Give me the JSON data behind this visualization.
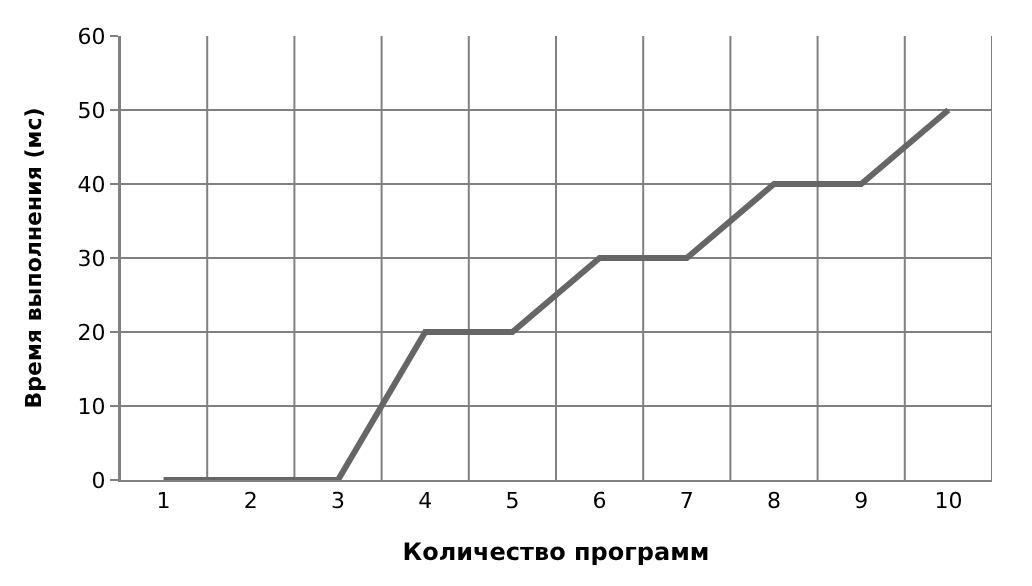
{
  "chart_data": {
    "type": "line",
    "xlabel": "Количество программ",
    "ylabel": "Время выполнения (мс)",
    "categories": [
      "1",
      "2",
      "3",
      "4",
      "5",
      "6",
      "7",
      "8",
      "9",
      "10"
    ],
    "series": [
      {
        "color": "#666666",
        "values": [
          0,
          0,
          0,
          20,
          20,
          30,
          30,
          40,
          40,
          50
        ]
      }
    ],
    "ylim": [
      0,
      60
    ],
    "yticks": [
      0,
      10,
      20,
      30,
      40,
      50,
      60
    ],
    "grid": true,
    "legend": false,
    "marker": "none",
    "line_style": "solid"
  }
}
